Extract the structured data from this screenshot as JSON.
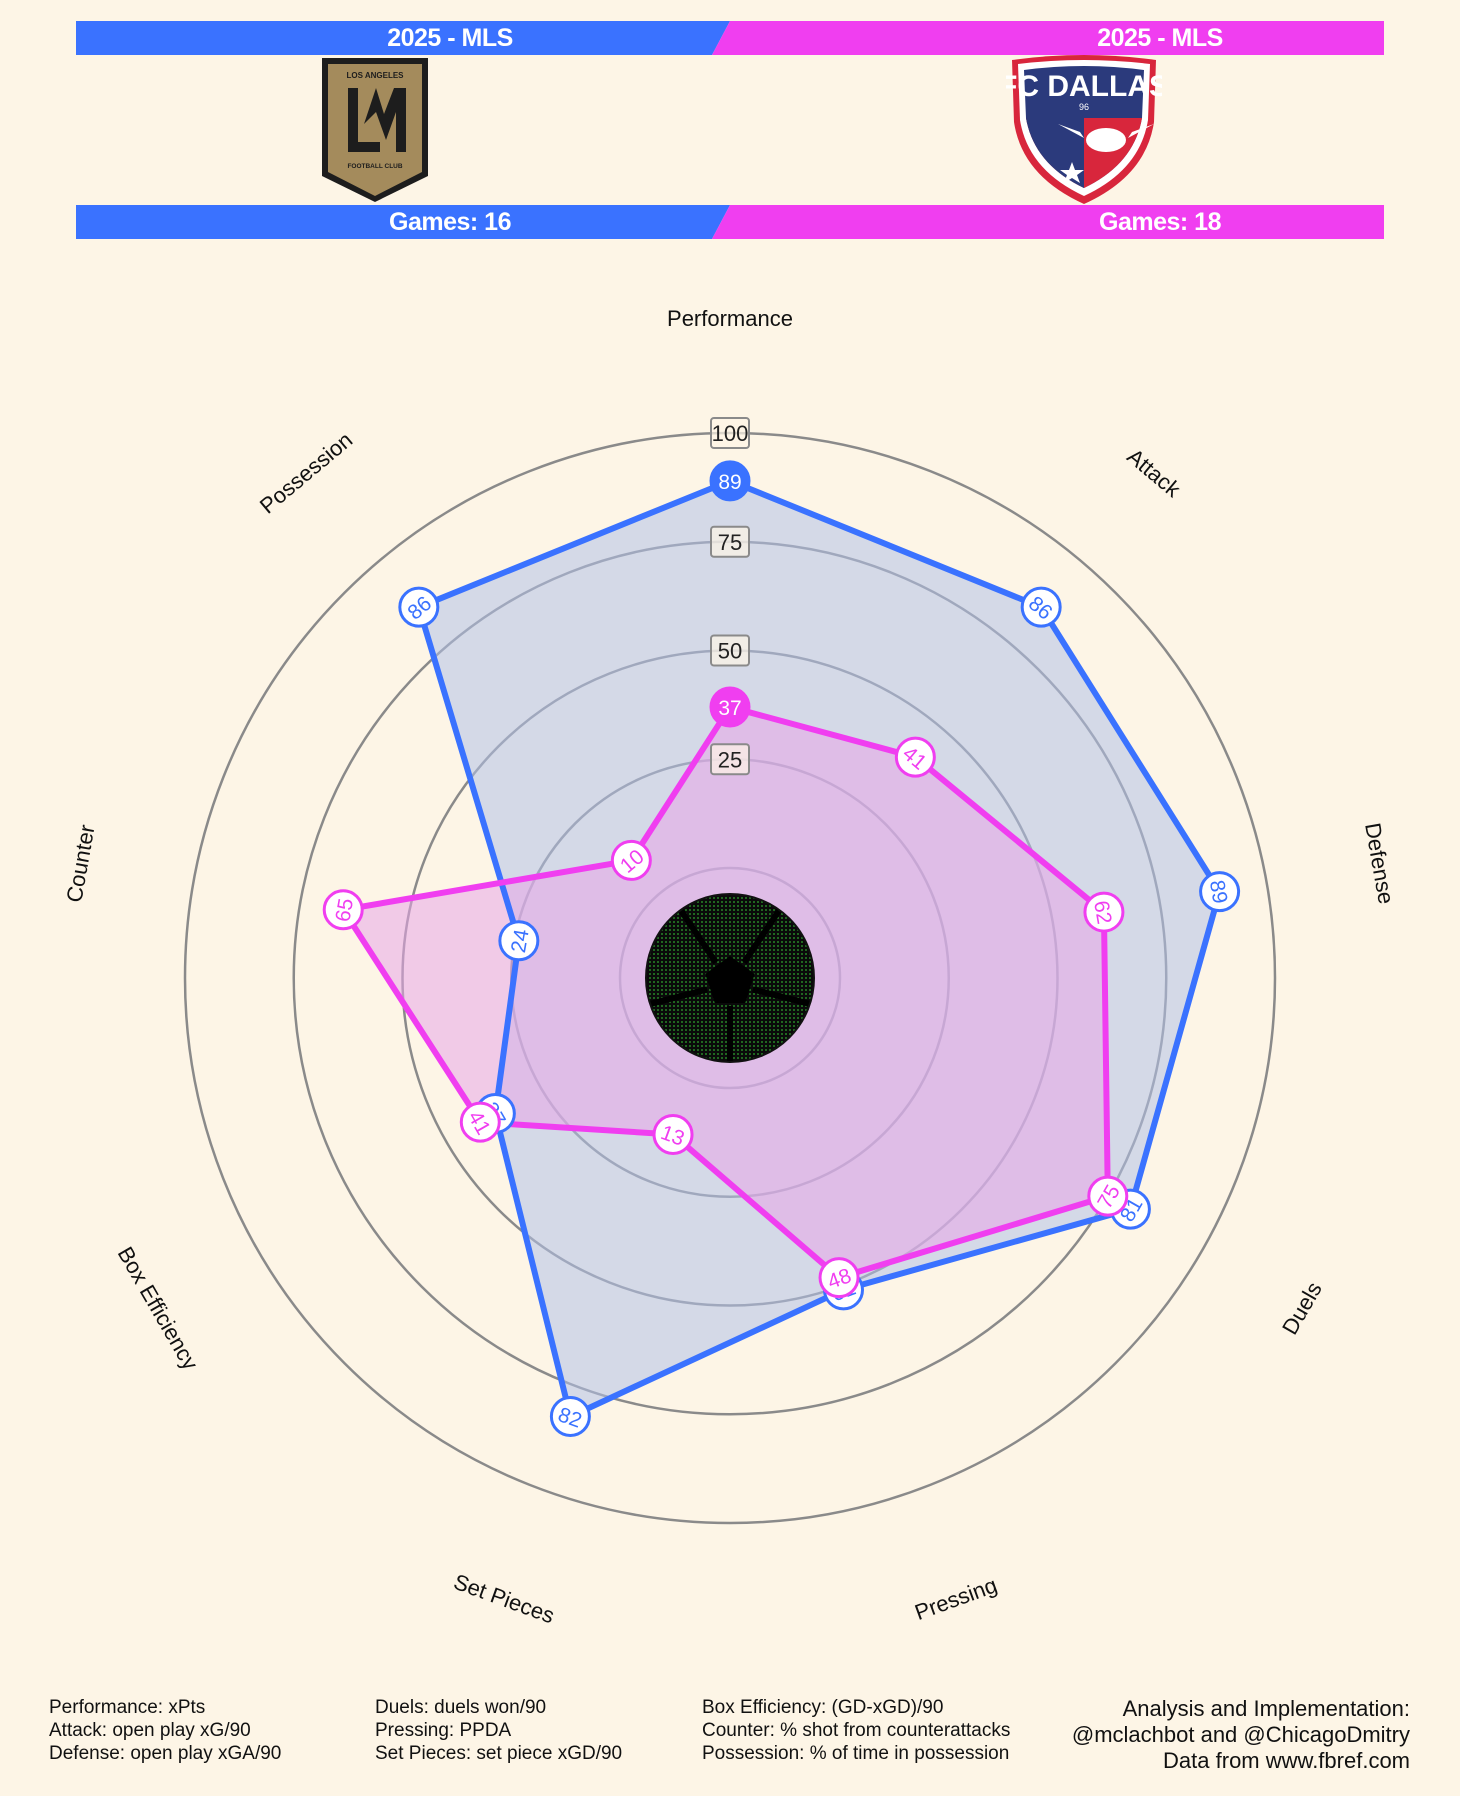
{
  "header": {
    "left": {
      "league": "2025 - MLS",
      "games": "Games: 16",
      "color": "#3a72ff",
      "crest": "lafc-crest"
    },
    "right": {
      "league": "2025 - MLS",
      "games": "Games: 18",
      "color": "#f03ef0",
      "crest": "fc-dallas-crest"
    },
    "lafc_crest_text": [
      "LOS ANGELES",
      "FOOTBALL CLUB"
    ],
    "dallas_crest_text": [
      "FC DALLAS",
      "96"
    ]
  },
  "chart_data": {
    "type": "radar",
    "axes": [
      "Performance",
      "Attack",
      "Defense",
      "Duels",
      "Pressing",
      "Set Pieces",
      "Box Efficiency",
      "Counter",
      "Possession"
    ],
    "range": [
      0,
      100
    ],
    "ring_labels": [
      "25",
      "50",
      "75",
      "100"
    ],
    "ring_values": [
      25,
      50,
      75,
      100
    ],
    "series": [
      {
        "color": "#3a72ff",
        "fill": "#b3c1e8",
        "values": [
          89,
          86,
          89,
          81,
          51,
          82,
          37,
          24,
          86
        ]
      },
      {
        "color": "#f03ef0",
        "fill": "#e8a6e8",
        "values": [
          37,
          41,
          62,
          75,
          48,
          13,
          41,
          65,
          10
        ]
      }
    ],
    "center_icon": "soccer-ball-icon"
  },
  "footer": {
    "col1": [
      "Performance: xPts",
      "Attack: open play xG/90",
      "Defense: open play xGA/90"
    ],
    "col2": [
      "Duels: duels won/90",
      "Pressing: PPDA",
      "Set Pieces: set piece xGD/90"
    ],
    "col3": [
      "Box Efficiency: (GD-xGD)/90",
      "Counter: % shot from counterattacks",
      "Possession: % of time in possession"
    ],
    "credits": [
      "Analysis and Implementation:",
      "@mclachbot and @ChicagoDmitry",
      "Data from www.fbref.com"
    ]
  }
}
